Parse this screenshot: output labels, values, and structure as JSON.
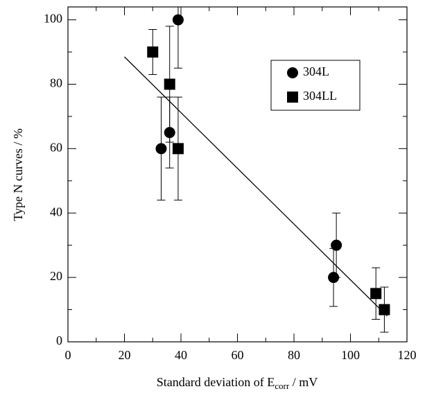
{
  "chart_data": {
    "type": "scatter",
    "x_label": [
      "Standard deviation of E",
      "corr",
      " / mV"
    ],
    "y_label": "Type N curves / %",
    "xlim": [
      0,
      120
    ],
    "ylim": [
      0,
      104
    ],
    "xticks": [
      0,
      20,
      40,
      60,
      80,
      100,
      120
    ],
    "yticks": [
      0,
      20,
      40,
      60,
      80,
      100
    ],
    "xticks_minor": [
      10,
      30,
      50,
      70,
      90,
      110
    ],
    "yticks_minor": [
      10,
      30,
      50,
      70,
      90
    ],
    "legend": "upper right",
    "series": [
      {
        "name": "304L",
        "marker": "circle",
        "color": "#000000",
        "x": [
          33,
          36,
          39,
          94,
          95
        ],
        "values": [
          60,
          65,
          100,
          20,
          30
        ],
        "errors": [
          16,
          11,
          15,
          9,
          10
        ]
      },
      {
        "name": "304LL",
        "marker": "square",
        "color": "#000000",
        "x": [
          30,
          36,
          39,
          109,
          112
        ],
        "values": [
          90,
          80,
          60,
          15,
          10
        ],
        "errors": [
          7,
          18,
          16,
          8,
          7
        ]
      }
    ],
    "fit_line": {
      "x": [
        20,
        113
      ],
      "y": [
        88.5,
        8
      ]
    }
  }
}
